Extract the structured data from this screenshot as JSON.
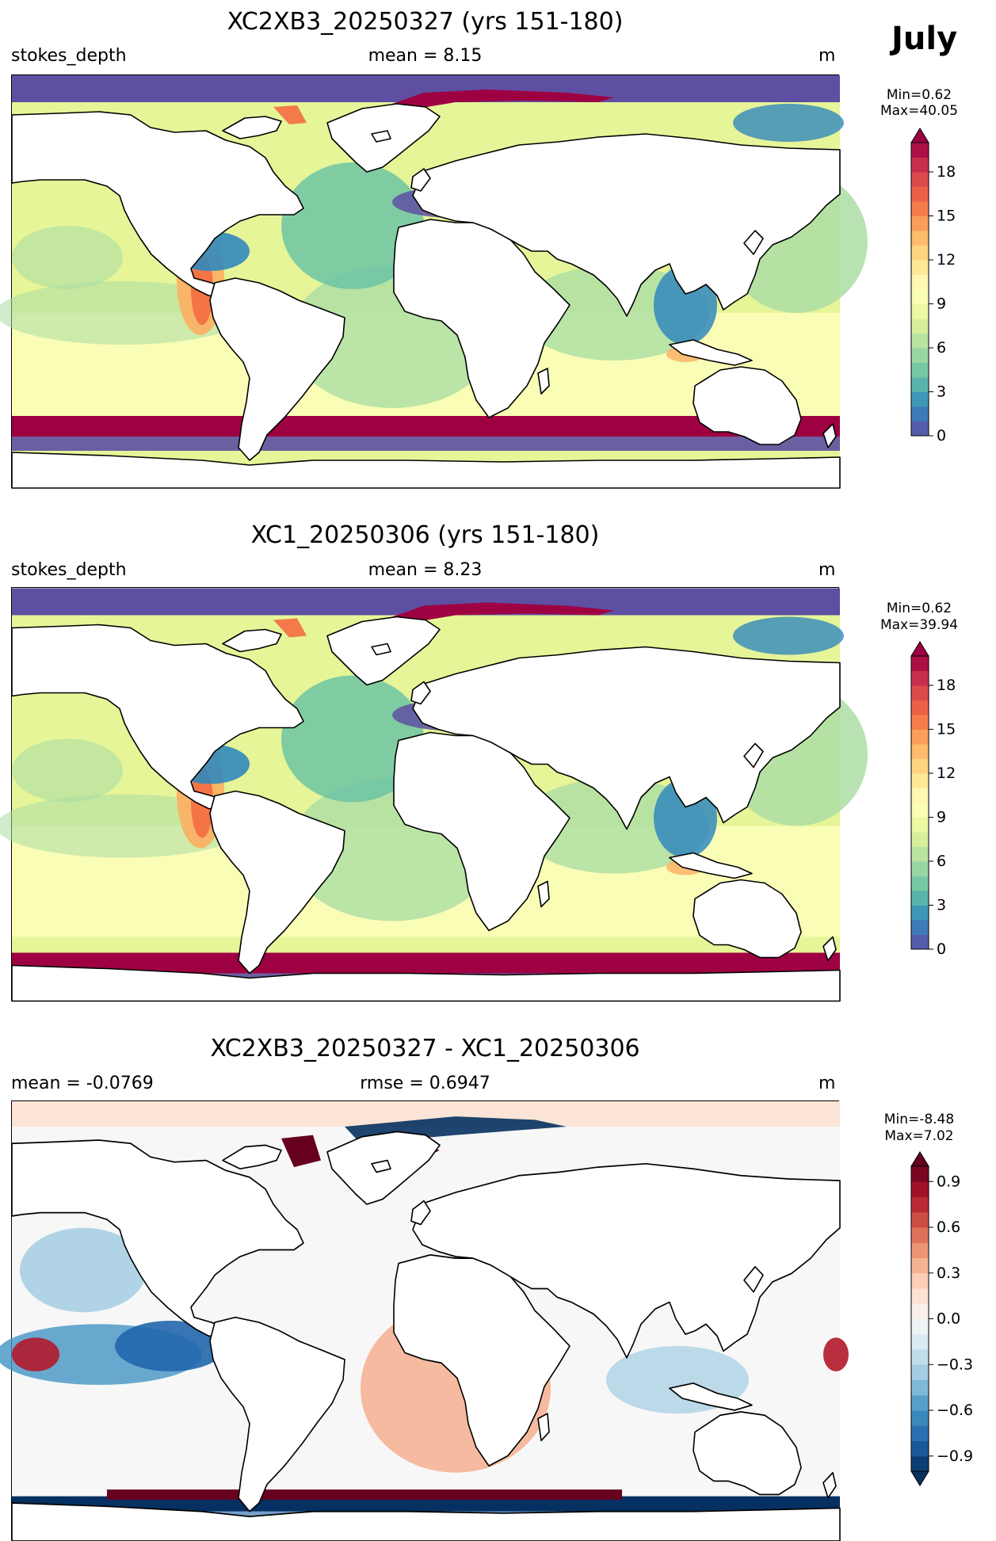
{
  "month": "July",
  "panels": [
    {
      "title": "XC2XB3_20250327 (yrs 151-180)",
      "left_label": "stokes_depth",
      "center_label": "mean = 8.15",
      "right_label": "m",
      "min_label": "Min=0.62",
      "max_label": "Max=40.05",
      "colormap": "Spectral_r",
      "colorbar_ticks": [
        "0",
        "3",
        "6",
        "9",
        "12",
        "15",
        "18"
      ],
      "colorbar_range": [
        0,
        20
      ],
      "colorbar_extend": "max"
    },
    {
      "title": "XC1_20250306 (yrs 151-180)",
      "left_label": "stokes_depth",
      "center_label": "mean = 8.23",
      "right_label": "m",
      "min_label": "Min=0.62",
      "max_label": "Max=39.94",
      "colormap": "Spectral_r",
      "colorbar_ticks": [
        "0",
        "3",
        "6",
        "9",
        "12",
        "15",
        "18"
      ],
      "colorbar_range": [
        0,
        20
      ],
      "colorbar_extend": "max"
    },
    {
      "title": "XC2XB3_20250327 - XC1_20250306",
      "left_label": "mean = -0.0769",
      "center_label": "rmse = 0.6947",
      "right_label": "m",
      "min_label": "Min=-8.48",
      "max_label": "Max=7.02",
      "colormap": "RdBu_r",
      "colorbar_ticks": [
        "−0.9",
        "−0.6",
        "−0.3",
        "0.0",
        "0.3",
        "0.6",
        "0.9"
      ],
      "colorbar_range": [
        -1.0,
        1.0
      ],
      "colorbar_extend": "both"
    }
  ],
  "colors": {
    "spectral": [
      "#5e4fa2",
      "#3288bd",
      "#66c2a5",
      "#abdda4",
      "#e6f598",
      "#ffffbf",
      "#fee08b",
      "#fdae61",
      "#f46d43",
      "#d53e4f",
      "#9e0142"
    ],
    "rdbu": [
      "#053061",
      "#2166ac",
      "#4393c3",
      "#92c5de",
      "#d1e5f0",
      "#f7f7f7",
      "#fddbc7",
      "#f4a582",
      "#d6604d",
      "#b2182b",
      "#67001f"
    ]
  }
}
